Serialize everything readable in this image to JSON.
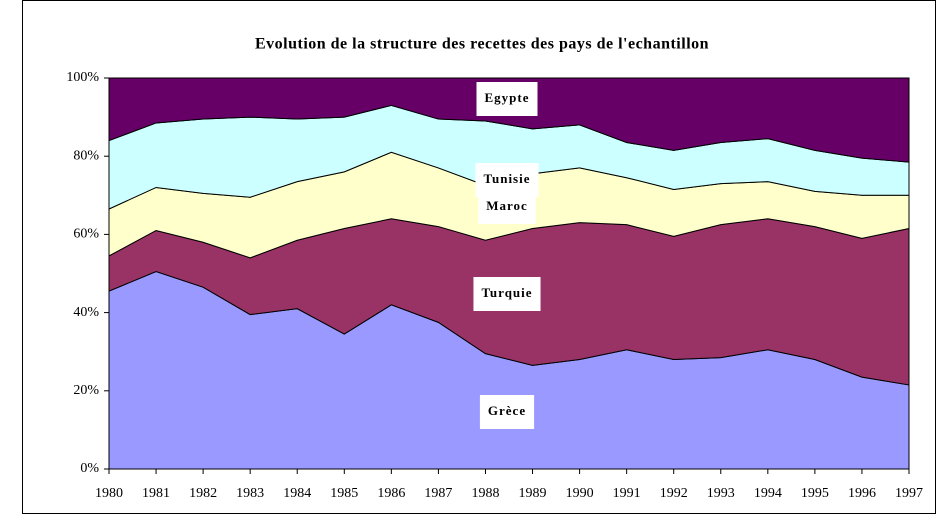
{
  "chart_data": {
    "type": "stacked_area_percent",
    "title": "Evolution de la structure des recettes des pays de l'echantillon",
    "categories": [
      "1980",
      "1981",
      "1982",
      "1983",
      "1984",
      "1985",
      "1986",
      "1987",
      "1988",
      "1989",
      "1990",
      "1991",
      "1992",
      "1993",
      "1994",
      "1995",
      "1996",
      "1997"
    ],
    "series": [
      {
        "name": "Grèce",
        "color": "#9999ff",
        "values": [
          45.5,
          50.5,
          46.5,
          39.5,
          41,
          34.5,
          42,
          37.5,
          29.5,
          26.5,
          28,
          30.5,
          28,
          28.5,
          30.5,
          28,
          23.5,
          21.5
        ]
      },
      {
        "name": "Turquie",
        "color": "#993366",
        "values": [
          9,
          10.5,
          11.5,
          14.5,
          17.5,
          27,
          22,
          24.5,
          29,
          35,
          35,
          32,
          31.5,
          34,
          33.5,
          34,
          35.5,
          40
        ]
      },
      {
        "name": "Maroc",
        "color": "#ffffcc",
        "values": [
          12,
          11,
          12.5,
          15.5,
          15,
          14.5,
          17,
          15,
          14,
          14,
          14,
          12,
          12,
          10.5,
          9.5,
          9,
          11,
          8.5
        ]
      },
      {
        "name": "Tunisie",
        "color": "#ccffff",
        "values": [
          17.5,
          16.5,
          19,
          20.5,
          16,
          14,
          12,
          12.5,
          16.5,
          11.5,
          11,
          9,
          10,
          10.5,
          11,
          10.5,
          9.5,
          8.5
        ]
      },
      {
        "name": "Egypte",
        "color": "#660066",
        "values": [
          16,
          11.5,
          10.5,
          10,
          10.5,
          10,
          7,
          10.5,
          11,
          13,
          12,
          16.5,
          18.5,
          16.5,
          15.5,
          18.5,
          20.5,
          21.5
        ]
      }
    ],
    "ylim": [
      0,
      100
    ],
    "yticks": [
      {
        "value": 0,
        "label": "0%"
      },
      {
        "value": 20,
        "label": "20%"
      },
      {
        "value": 40,
        "label": "40%"
      },
      {
        "value": 60,
        "label": "60%"
      },
      {
        "value": 80,
        "label": "80%"
      },
      {
        "value": 100,
        "label": "100%"
      }
    ],
    "grid": false
  }
}
